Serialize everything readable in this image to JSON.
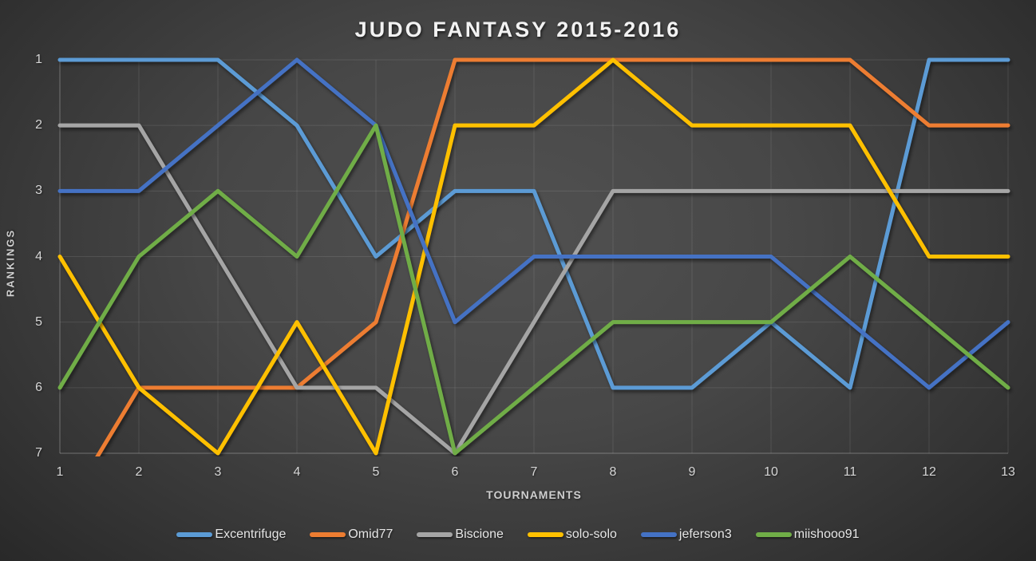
{
  "chart_data": {
    "type": "line",
    "title": "JUDO FANTASY 2015-2016",
    "xlabel": "TOURNAMENTS",
    "ylabel": "RANKINGS",
    "x": [
      1,
      2,
      3,
      4,
      5,
      6,
      7,
      8,
      9,
      10,
      11,
      12,
      13
    ],
    "x_tick_labels": [
      "1",
      "2",
      "3",
      "4",
      "5",
      "6",
      "7",
      "8",
      "9",
      "10",
      "11",
      "12",
      "13"
    ],
    "y_ticks": [
      1,
      2,
      3,
      4,
      5,
      6,
      7
    ],
    "y_tick_labels": [
      "1",
      "2",
      "3",
      "4",
      "5",
      "6",
      "7"
    ],
    "ylim": [
      1,
      7
    ],
    "y_axis_reversed": true,
    "grid": true,
    "legend_position": "bottom",
    "series": [
      {
        "name": "Excentrifuge",
        "color": "#5B9BD5",
        "values": [
          1,
          1,
          1,
          2,
          4,
          3,
          3,
          6,
          6,
          5,
          6,
          1,
          1
        ]
      },
      {
        "name": "Omid77",
        "color": "#ED7D31",
        "values": [
          8,
          6,
          6,
          6,
          5,
          1,
          1,
          1,
          1,
          1,
          1,
          2,
          2
        ],
        "first_point_clipped_below_axis": true
      },
      {
        "name": "Biscione",
        "color": "#A5A5A5",
        "values": [
          2,
          2,
          4,
          6,
          6,
          7,
          5,
          3,
          3,
          3,
          3,
          3,
          3
        ]
      },
      {
        "name": "solo-solo",
        "color": "#FFC000",
        "values": [
          4,
          6,
          7,
          5,
          7,
          2,
          2,
          1,
          2,
          2,
          2,
          4,
          4
        ]
      },
      {
        "name": "jeferson3",
        "color": "#4472C4",
        "values": [
          3,
          3,
          2,
          1,
          2,
          5,
          4,
          4,
          4,
          4,
          5,
          6,
          5
        ]
      },
      {
        "name": "miishooo91",
        "color": "#70AD47",
        "values": [
          6,
          4,
          3,
          4,
          2,
          7,
          6,
          5,
          5,
          5,
          4,
          5,
          6
        ]
      }
    ]
  },
  "style_colors": {
    "background_center": "#515151",
    "background_edge": "#262626",
    "gridline": "rgba(255,255,255,0.10)",
    "axis_spine": "rgba(255,255,255,0.22)",
    "tick_text": "#D6D6D6",
    "title_text": "#F2F2F2"
  }
}
